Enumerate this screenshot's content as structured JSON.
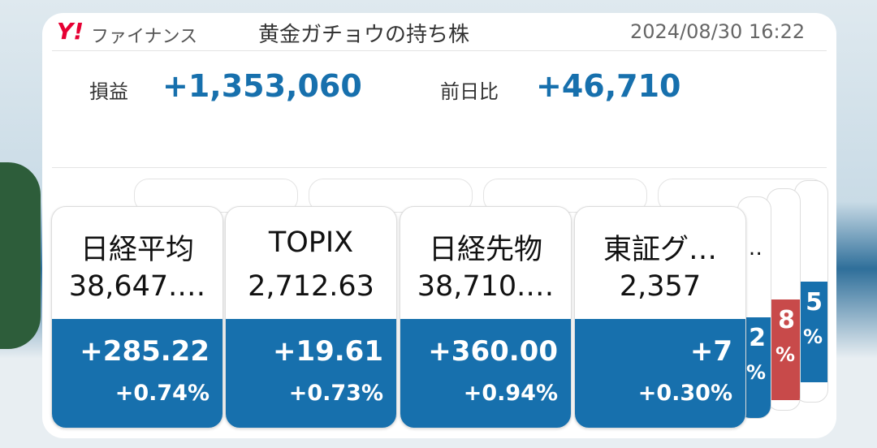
{
  "header": {
    "logo_mark": "Y!",
    "logo_text": "ファイナンス",
    "title": "黄金ガチョウの持ち株",
    "datetime": "2024/08/30 16:22"
  },
  "summary": {
    "profit_label": "損益",
    "profit_value": "+1,353,060",
    "daily_label": "前日比",
    "daily_value": "+46,710"
  },
  "cards": [
    {
      "name": "日経平均",
      "price": "38,647.…",
      "change": "+285.22",
      "percent": "+0.74%"
    },
    {
      "name": "TOPIX",
      "price": "2,712.63",
      "change": "+19.61",
      "percent": "+0.73%"
    },
    {
      "name": "日経先物",
      "price": "38,710.…",
      "change": "+360.00",
      "percent": "+0.94%"
    },
    {
      "name": "東証グ…",
      "price": "2,357",
      "change": "+7",
      "percent": "+0.30%"
    }
  ],
  "back_cards": [
    {
      "name": "…",
      "change": "2",
      "percent": "%"
    },
    {
      "change": "8",
      "percent": "%"
    },
    {
      "change": "5",
      "percent": "%"
    }
  ]
}
